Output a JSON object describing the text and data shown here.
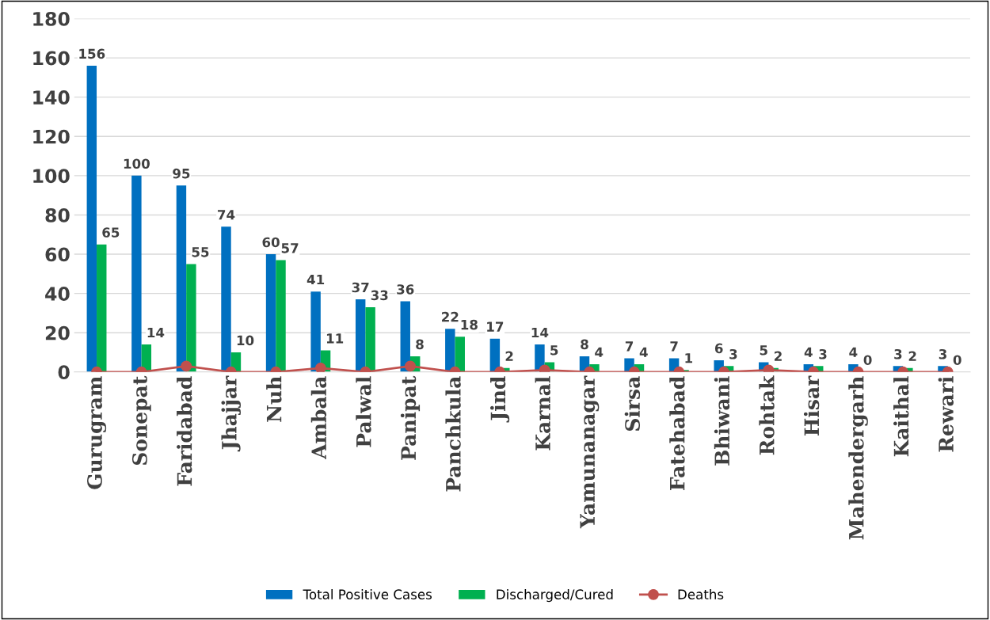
{
  "chart_data": {
    "type": "bar",
    "categories": [
      "Gurugram",
      "Sonepat",
      "Faridabad",
      "Jhajjar",
      "Nuh",
      "Ambala",
      "Palwal",
      "Panipat",
      "Panchkula",
      "Jind",
      "Karnal",
      "Yamunanagar",
      "Sirsa",
      "Fatehabad",
      "Bhiwani",
      "Rohtak",
      "Hisar",
      "Mahendergarh",
      "Kaithal",
      "Rewari"
    ],
    "series": [
      {
        "name": "Total Positive Cases",
        "color": "#0070c0",
        "values": [
          156,
          100,
          95,
          74,
          60,
          41,
          37,
          36,
          22,
          17,
          14,
          8,
          7,
          7,
          6,
          5,
          4,
          4,
          3,
          3
        ],
        "value_labels": [
          "156",
          "100",
          "95",
          "74",
          "60",
          "41",
          "37",
          "36",
          "22",
          "17",
          "14",
          "8",
          "7",
          "7",
          "6",
          "5",
          "4",
          "4",
          "3",
          "3"
        ]
      },
      {
        "name": "Discharged/Cured",
        "color": "#00b050",
        "values": [
          65,
          14,
          55,
          10,
          57,
          11,
          33,
          8,
          18,
          2,
          5,
          4,
          4,
          1,
          3,
          2,
          3,
          0,
          2,
          0
        ],
        "value_labels": [
          "65",
          "14",
          "55",
          "10",
          "57",
          "11",
          "33",
          "8",
          "18",
          "2",
          "5",
          "4",
          "4",
          "1",
          "3",
          "2",
          "3",
          "0",
          "2",
          "0"
        ]
      },
      {
        "name": "Deaths",
        "type": "line",
        "color": "#c0504d",
        "marker": "circle",
        "values": [
          0,
          0,
          3,
          0,
          0,
          2,
          0,
          3,
          0,
          0,
          1,
          0,
          0,
          0,
          0,
          1,
          0,
          0,
          0,
          0
        ]
      }
    ],
    "ylim": [
      0,
      180
    ],
    "yticks": [
      0,
      20,
      40,
      60,
      80,
      100,
      120,
      140,
      160,
      180
    ],
    "grid": "y",
    "legend": "bottom"
  }
}
